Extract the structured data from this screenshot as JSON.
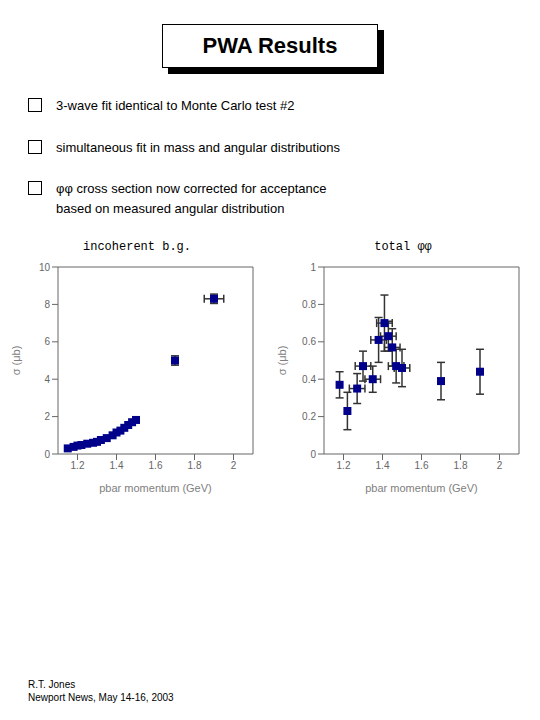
{
  "title": "PWA Results",
  "annotations": [
    "3-wave fit identical to Monte Carlo test #2",
    "simultaneous fit in mass and angular distributions",
    "φφ cross section now corrected for acceptance\nbased on measured angular distribution",
    "R.T. Jones\nNewport News, May 14-16, 2003"
  ],
  "chart_data": [
    {
      "type": "scatter",
      "title": "incoherent b.g.",
      "xlabel": "pbar momentum (GeV)",
      "ylabel": "σ (μb)",
      "xlim": [
        1.1,
        2.1
      ],
      "ylim": [
        0,
        10
      ],
      "xticks": [
        1.2,
        1.4,
        1.6,
        1.8,
        2.0
      ],
      "yticks": [
        0,
        2,
        4,
        6,
        8,
        10
      ],
      "x": [
        1.15,
        1.18,
        1.2,
        1.22,
        1.25,
        1.28,
        1.3,
        1.32,
        1.35,
        1.38,
        1.4,
        1.42,
        1.44,
        1.46,
        1.48,
        1.5,
        1.7,
        1.9
      ],
      "values": [
        0.3,
        0.38,
        0.45,
        0.48,
        0.55,
        0.6,
        0.65,
        0.75,
        0.85,
        1.0,
        1.15,
        1.25,
        1.4,
        1.55,
        1.7,
        1.82,
        5.0,
        8.3
      ],
      "yerr": [
        0.0,
        0.0,
        0.0,
        0.0,
        0.0,
        0.0,
        0.0,
        0.0,
        0.0,
        0.0,
        0.0,
        0.0,
        0.0,
        0.0,
        0.0,
        0.0,
        0.25,
        0.25
      ],
      "xerr": [
        0.0,
        0.0,
        0.0,
        0.0,
        0.0,
        0.0,
        0.0,
        0.0,
        0.0,
        0.0,
        0.0,
        0.0,
        0.0,
        0.0,
        0.0,
        0.0,
        0.0,
        0.05
      ],
      "color": "#00008B",
      "marker": "square",
      "grid": false
    },
    {
      "type": "scatter",
      "title": "total φφ",
      "xlabel": "pbar momentum (GeV)",
      "ylabel": "σ (μb)",
      "xlim": [
        1.1,
        2.1
      ],
      "ylim": [
        0,
        1.0
      ],
      "xticks": [
        1.2,
        1.4,
        1.6,
        1.8,
        2.0
      ],
      "yticks": [
        0,
        0.2,
        0.4,
        0.6,
        0.8,
        1.0
      ],
      "x": [
        1.18,
        1.22,
        1.27,
        1.3,
        1.35,
        1.38,
        1.41,
        1.43,
        1.45,
        1.47,
        1.5,
        1.7,
        1.9
      ],
      "values": [
        0.37,
        0.23,
        0.35,
        0.47,
        0.4,
        0.61,
        0.7,
        0.63,
        0.57,
        0.47,
        0.46,
        0.39,
        0.44
      ],
      "yerr": [
        0.07,
        0.1,
        0.08,
        0.08,
        0.07,
        0.12,
        0.15,
        0.08,
        0.1,
        0.09,
        0.1,
        0.1,
        0.12
      ],
      "xerr": [
        0.0,
        0.0,
        0.04,
        0.04,
        0.04,
        0.04,
        0.04,
        0.04,
        0.04,
        0.04,
        0.04,
        0.0,
        0.0
      ],
      "color": "#00008B",
      "marker": "square",
      "grid": false
    }
  ]
}
